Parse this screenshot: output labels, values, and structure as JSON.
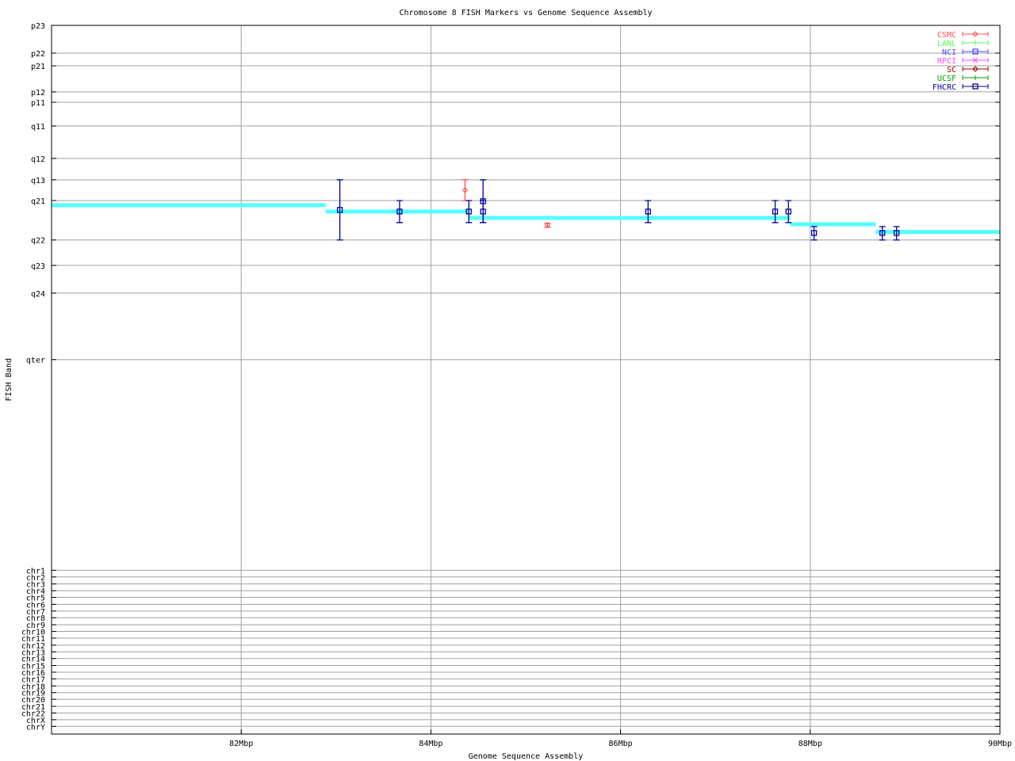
{
  "chart_data": {
    "type": "scatter",
    "title": "Chromosome 8 FISH Markers vs Genome Sequence Assembly",
    "xlabel": "Genome Sequence Assembly",
    "ylabel": "FISH Band",
    "xlim": [
      80,
      90
    ],
    "ylim": [
      0,
      212
    ],
    "y_reversed": true,
    "grid": true,
    "legend_position": "top-right",
    "x_ticks": [
      {
        "value": 82,
        "label": "82Mbp"
      },
      {
        "value": 84,
        "label": "84Mbp"
      },
      {
        "value": 86,
        "label": "86Mbp"
      },
      {
        "value": 88,
        "label": "88Mbp"
      },
      {
        "value": 90,
        "label": "90Mbp"
      }
    ],
    "y_ticks": [
      {
        "value": 0,
        "label": "p23"
      },
      {
        "value": 8.3,
        "label": "p22"
      },
      {
        "value": 12.1,
        "label": "p21"
      },
      {
        "value": 19.9,
        "label": "p12"
      },
      {
        "value": 23.0,
        "label": "p11"
      },
      {
        "value": 30.1,
        "label": "q11"
      },
      {
        "value": 39.8,
        "label": "q12"
      },
      {
        "value": 46.2,
        "label": "q13"
      },
      {
        "value": 52.4,
        "label": "q21"
      },
      {
        "value": 64.2,
        "label": "q22"
      },
      {
        "value": 71.8,
        "label": "q23"
      },
      {
        "value": 80.1,
        "label": "q24"
      },
      {
        "value": 100,
        "label": "qter"
      },
      {
        "value": 163.0,
        "label": "chr1"
      },
      {
        "value": 165.0,
        "label": "chr2"
      },
      {
        "value": 167.1,
        "label": "chr3"
      },
      {
        "value": 169.1,
        "label": "chr4"
      },
      {
        "value": 171.1,
        "label": "chr5"
      },
      {
        "value": 173.2,
        "label": "chr6"
      },
      {
        "value": 175.2,
        "label": "chr7"
      },
      {
        "value": 177.2,
        "label": "chr8"
      },
      {
        "value": 179.3,
        "label": "chr9"
      },
      {
        "value": 181.3,
        "label": "chr10"
      },
      {
        "value": 183.3,
        "label": "chr11"
      },
      {
        "value": 185.4,
        "label": "chr12"
      },
      {
        "value": 187.4,
        "label": "chr13"
      },
      {
        "value": 189.4,
        "label": "chr14"
      },
      {
        "value": 191.5,
        "label": "chr15"
      },
      {
        "value": 193.5,
        "label": "chr16"
      },
      {
        "value": 195.5,
        "label": "chr17"
      },
      {
        "value": 197.6,
        "label": "chr18"
      },
      {
        "value": 199.6,
        "label": "chr19"
      },
      {
        "value": 201.6,
        "label": "chr20"
      },
      {
        "value": 203.7,
        "label": "chr21"
      },
      {
        "value": 205.7,
        "label": "chr22"
      },
      {
        "value": 207.7,
        "label": "chrX"
      },
      {
        "value": 209.7,
        "label": "chrY"
      }
    ],
    "series": [
      {
        "name": "CSMC",
        "color": "#ff4d4d",
        "marker": "diamond",
        "points": [
          {
            "x": 84.36,
            "y": 49.3,
            "ylow": 46.2,
            "yhigh": 52.4
          },
          {
            "x": 85.23,
            "y": 59.7,
            "ylow": 59.2,
            "yhigh": 60.4
          }
        ]
      },
      {
        "name": "LANL",
        "color": "#4dff4d",
        "marker": "plus",
        "points": []
      },
      {
        "name": "NCI",
        "color": "#4d4dff",
        "marker": "square",
        "points": []
      },
      {
        "name": "RPCI",
        "color": "#ff4dff",
        "marker": "cross",
        "points": []
      },
      {
        "name": "SC",
        "color": "#a00000",
        "marker": "diamond",
        "points": []
      },
      {
        "name": "UCSF",
        "color": "#00a000",
        "marker": "plus",
        "points": []
      },
      {
        "name": "FHCRC",
        "color": "#0000a0",
        "marker": "square",
        "points": [
          {
            "x": 83.04,
            "y": 55.2,
            "ylow": 46.2,
            "yhigh": 64.2
          },
          {
            "x": 83.67,
            "y": 55.7,
            "ylow": 52.4,
            "yhigh": 59.0
          },
          {
            "x": 84.4,
            "y": 55.7,
            "ylow": 52.4,
            "yhigh": 59.0
          },
          {
            "x": 84.55,
            "y": 52.6,
            "ylow": 46.2,
            "yhigh": 59.0
          },
          {
            "x": 84.55,
            "y": 55.7,
            "ylow": 52.4,
            "yhigh": 59.0
          },
          {
            "x": 86.29,
            "y": 55.7,
            "ylow": 52.4,
            "yhigh": 59.0
          },
          {
            "x": 87.63,
            "y": 55.7,
            "ylow": 52.4,
            "yhigh": 59.0
          },
          {
            "x": 87.77,
            "y": 55.7,
            "ylow": 52.4,
            "yhigh": 59.0
          },
          {
            "x": 88.04,
            "y": 62.1,
            "ylow": 60.2,
            "yhigh": 64.2
          },
          {
            "x": 88.76,
            "y": 62.1,
            "ylow": 60.2,
            "yhigh": 64.2
          },
          {
            "x": 88.91,
            "y": 62.1,
            "ylow": 60.2,
            "yhigh": 64.2
          }
        ]
      }
    ],
    "assembly_line": {
      "color": "#55ffff",
      "segments": [
        {
          "x0": 80.0,
          "x1": 82.89,
          "y": 53.8
        },
        {
          "x0": 82.89,
          "x1": 84.4,
          "y": 55.7
        },
        {
          "x0": 84.4,
          "x1": 87.79,
          "y": 57.6
        },
        {
          "x0": 87.79,
          "x1": 88.69,
          "y": 59.5
        },
        {
          "x0": 88.69,
          "x1": 90.0,
          "y": 61.8
        }
      ]
    }
  }
}
